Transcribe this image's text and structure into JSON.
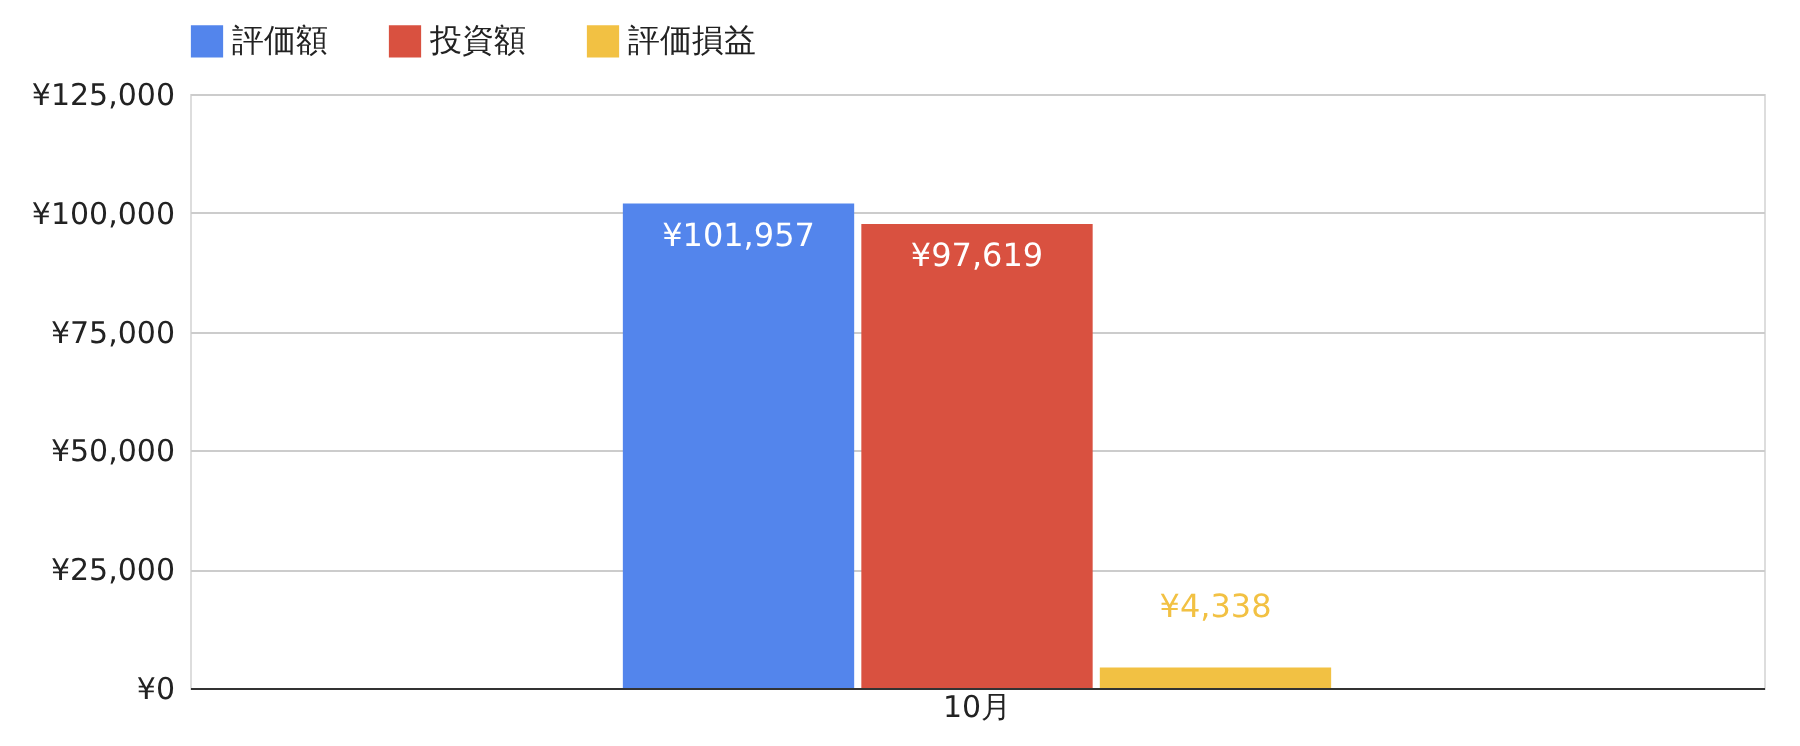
{
  "chart_data": {
    "type": "bar",
    "categories": [
      "10月"
    ],
    "series": [
      {
        "name": "評価額",
        "color": "#5385ec",
        "values": [
          101957
        ],
        "value_labels": [
          "¥101,957"
        ]
      },
      {
        "name": "投資額",
        "color": "#d95140",
        "values": [
          97619
        ],
        "value_labels": [
          "¥97,619"
        ]
      },
      {
        "name": "評価損益",
        "color": "#f2c143",
        "values": [
          4338
        ],
        "value_labels": [
          "¥4,338"
        ]
      }
    ],
    "ylim": [
      0,
      125000
    ],
    "yticks": [
      {
        "value": 0,
        "label": "¥0"
      },
      {
        "value": 25000,
        "label": "¥25,000"
      },
      {
        "value": 50000,
        "label": "¥50,000"
      },
      {
        "value": 75000,
        "label": "¥75,000"
      },
      {
        "value": 100000,
        "label": "¥100,000"
      },
      {
        "value": 125000,
        "label": "¥125,000"
      }
    ],
    "grid": "y",
    "legend": "top"
  }
}
